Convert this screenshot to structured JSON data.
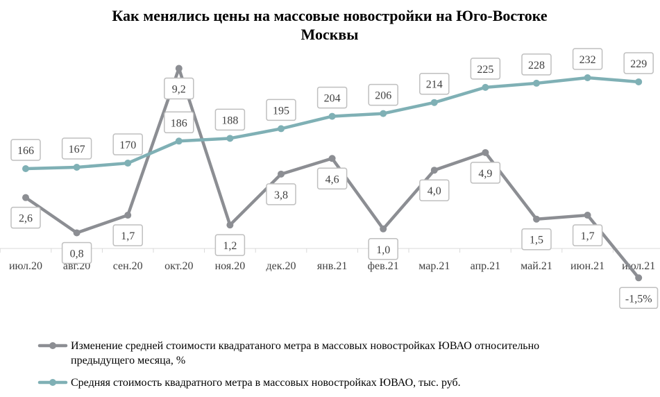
{
  "chart_data": {
    "type": "line",
    "title_lines": [
      "Как менялись цены на массовые новостройки  на Юго-Востоке",
      "Москвы"
    ],
    "categories": [
      "июл.20",
      "авг.20",
      "сен.20",
      "окт.20",
      "ноя.20",
      "дек.20",
      "янв.21",
      "фев.21",
      "мар.21",
      "апр.21",
      "май.21",
      "июн.21",
      "июл.21"
    ],
    "series": [
      {
        "name": "Изменение  средней стоимости квадратаного метра в массовых новостройках ЮВАО относительно предыдущего месяца, %",
        "legend_lines": [
          "Изменение  средней стоимости квадратаного метра в массовых новостройках ЮВАО относительно",
          "предыдущего месяца, %"
        ],
        "color": "#8c8e93",
        "values": [
          2.6,
          0.8,
          1.7,
          9.2,
          1.2,
          3.8,
          4.6,
          1.0,
          4.0,
          4.9,
          1.5,
          1.7,
          -1.5
        ],
        "labels": [
          "2,6",
          "0,8",
          "1,7",
          "9,2",
          "1,2",
          "3,8",
          "4,6",
          "1,0",
          "4,0",
          "4,9",
          "1,5",
          "1,7",
          "-1,5%"
        ],
        "label_placement": [
          "below",
          "below",
          "below",
          "below",
          "below",
          "below",
          "below",
          "below",
          "below",
          "below",
          "below",
          "below",
          "below"
        ],
        "label_colors": [
          "#404040",
          "#404040",
          "#404040",
          "#404040",
          "#404040",
          "#404040",
          "#404040",
          "#404040",
          "#404040",
          "#404040",
          "#404040",
          "#000000",
          "#c00000"
        ]
      },
      {
        "name": "Средняя стоимость квадратного метра в массовых новостройках ЮВАО, тыс. руб.",
        "legend_lines": [
          "Средняя стоимость квадратного метра в массовых новостройках ЮВАО, тыс. руб."
        ],
        "color": "#7fb0b5",
        "values": [
          166,
          167,
          170,
          186,
          188,
          195,
          204,
          206,
          214,
          225,
          228,
          232,
          229
        ],
        "labels": [
          "166",
          "167",
          "170",
          "186",
          "188",
          "195",
          "204",
          "206",
          "214",
          "225",
          "228",
          "232",
          "229"
        ],
        "label_placement": [
          "above",
          "above",
          "above",
          "above",
          "above",
          "above",
          "above",
          "above",
          "above",
          "above",
          "above",
          "above",
          "above"
        ]
      }
    ],
    "grid": false
  }
}
